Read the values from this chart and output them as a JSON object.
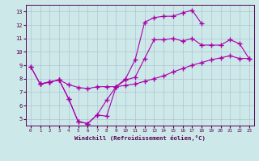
{
  "xlabel": "Windchill (Refroidissement éolien,°C)",
  "xlim": [
    -0.5,
    23.5
  ],
  "ylim": [
    4.5,
    13.5
  ],
  "yticks": [
    5,
    6,
    7,
    8,
    9,
    10,
    11,
    12,
    13
  ],
  "xticks": [
    0,
    1,
    2,
    3,
    4,
    5,
    6,
    7,
    8,
    9,
    10,
    11,
    12,
    13,
    14,
    15,
    16,
    17,
    18,
    19,
    20,
    21,
    22,
    23
  ],
  "background_color": "#cce8e8",
  "grid_color": "#aabbcc",
  "line_color": "#aa00aa",
  "line1_x": [
    0,
    1,
    2,
    3,
    4,
    5,
    6,
    7,
    8,
    9,
    10,
    11,
    12,
    13,
    14,
    15,
    16,
    17,
    18,
    19,
    20,
    21,
    22,
    23
  ],
  "line1_y": [
    8.9,
    7.6,
    7.75,
    7.9,
    6.5,
    4.8,
    4.65,
    5.3,
    5.2,
    7.4,
    7.9,
    8.1,
    9.5,
    10.9,
    10.9,
    11.0,
    10.8,
    11.0,
    10.5,
    10.5,
    10.5,
    10.9,
    10.6,
    9.5
  ],
  "line2_x": [
    0,
    1,
    2,
    3,
    4,
    5,
    6,
    7,
    8,
    9,
    10,
    11,
    12,
    13,
    14,
    15,
    16,
    17,
    18
  ],
  "line2_y": [
    8.9,
    7.6,
    7.75,
    7.9,
    6.5,
    4.8,
    4.65,
    5.3,
    6.4,
    7.4,
    8.0,
    9.4,
    12.2,
    12.55,
    12.65,
    12.65,
    12.9,
    13.1,
    12.1
  ],
  "line3_x": [
    1,
    2,
    3,
    4,
    5,
    6,
    7,
    8,
    9,
    10,
    11,
    12,
    13,
    14,
    15,
    16,
    17,
    18,
    19,
    20,
    21,
    22,
    23
  ],
  "line3_y": [
    7.6,
    7.75,
    7.9,
    7.55,
    7.35,
    7.25,
    7.4,
    7.4,
    7.4,
    7.5,
    7.6,
    7.8,
    8.0,
    8.2,
    8.5,
    8.75,
    9.0,
    9.2,
    9.4,
    9.55,
    9.7,
    9.5,
    9.5
  ]
}
